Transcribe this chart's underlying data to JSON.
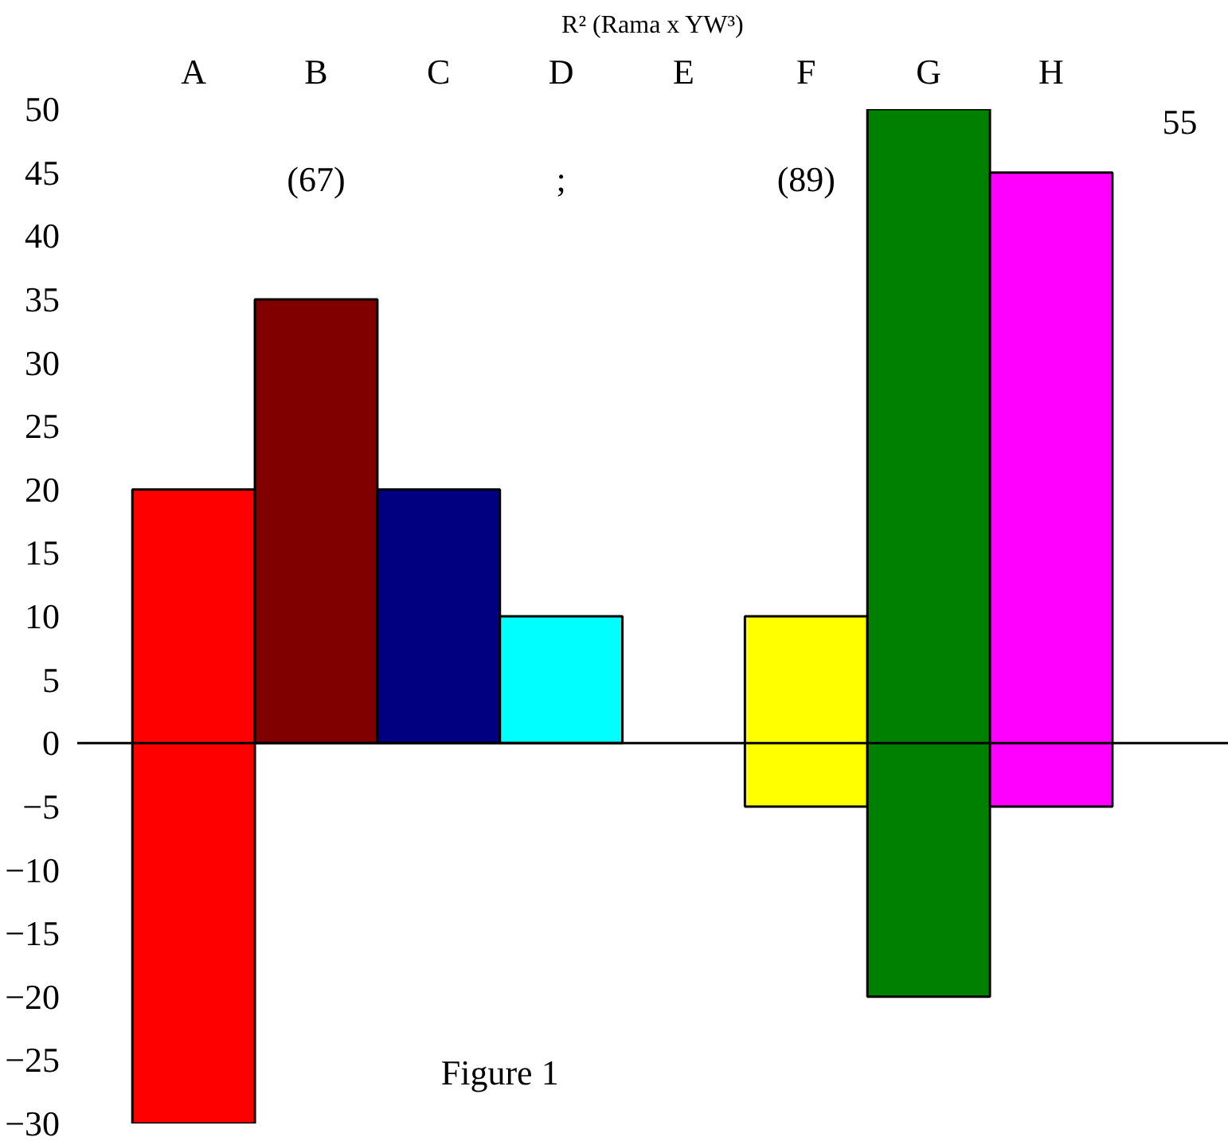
{
  "chart_data": {
    "type": "bar",
    "title": "R² (Rama x YW³)",
    "categories": [
      "A",
      "B",
      "C",
      "D",
      "E",
      "F",
      "G",
      "H"
    ],
    "base": [
      -30,
      0,
      0,
      0,
      null,
      -5,
      -20,
      -5
    ],
    "values": [
      50,
      35,
      20,
      10,
      null,
      15,
      70,
      50
    ],
    "colors": [
      "#ff0000",
      "#800000",
      "#000080",
      "#00ffff",
      "#ffffff",
      "#ffff00",
      "#008000",
      "#ff00ff"
    ],
    "ylim": [
      -30,
      50
    ],
    "yticks": [
      -30,
      -25,
      -20,
      -15,
      -10,
      -5,
      0,
      5,
      10,
      15,
      20,
      25,
      30,
      35,
      40,
      45,
      50
    ],
    "ref_lines": [
      {
        "axis": "y",
        "value": 0,
        "color": "#000000"
      }
    ],
    "annotations": [
      "(67)",
      ";",
      "(89)",
      "55",
      "Figure 1"
    ],
    "grid": false
  }
}
